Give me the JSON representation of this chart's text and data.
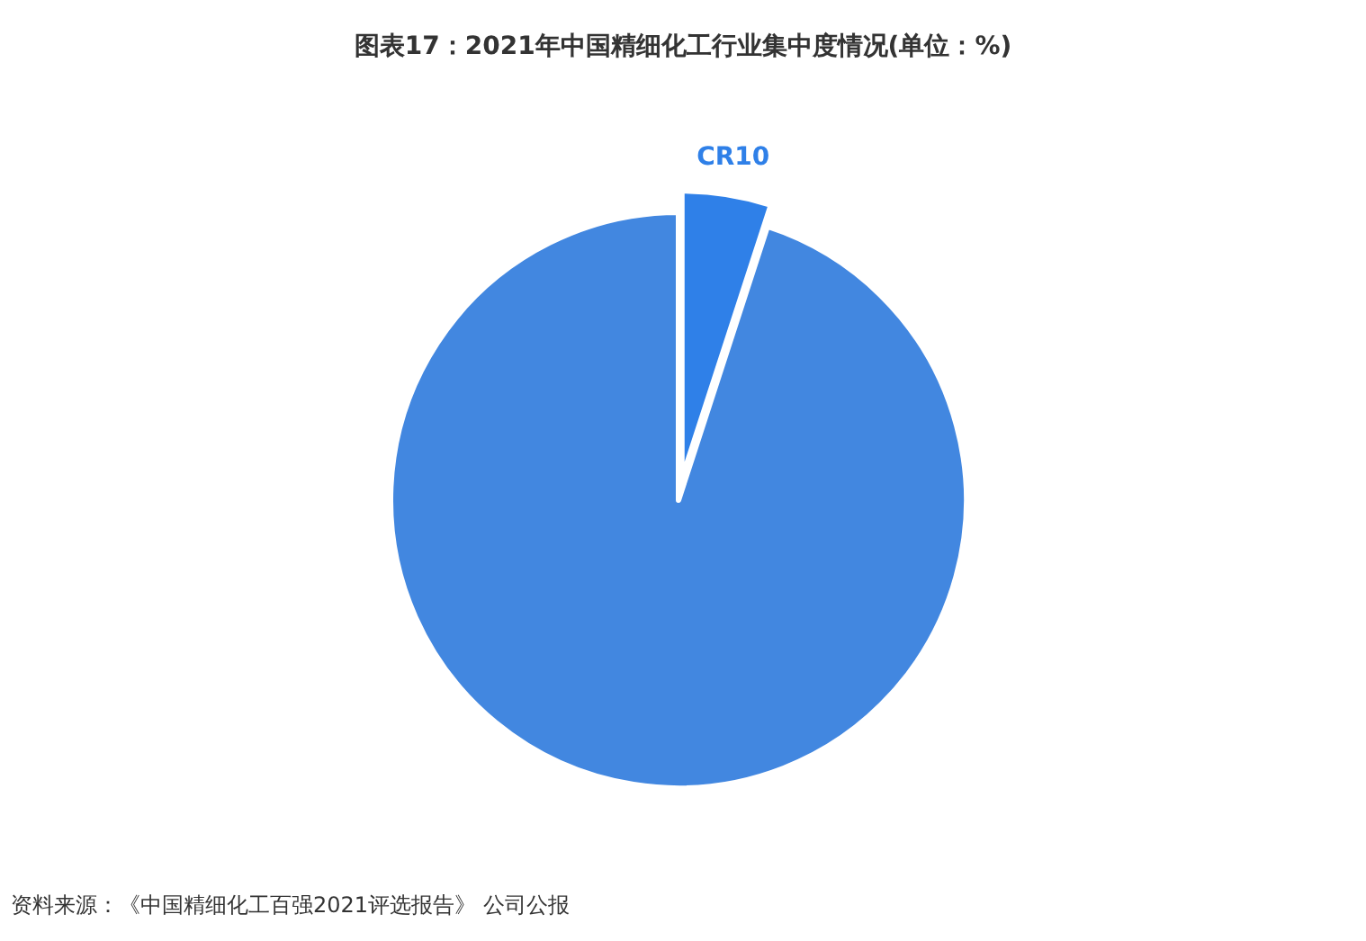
{
  "chart_data": {
    "type": "pie",
    "title": "图表17：2021年中国精细化工行业集中度情况(单位：%)",
    "categories": [
      "CR10",
      null
    ],
    "values": [
      5,
      95
    ],
    "colors": [
      "#2f80e8",
      "#4287e0"
    ],
    "annotations": [
      "资料来源：《中国精细化工百强2021评选报告》 公司公报"
    ]
  }
}
